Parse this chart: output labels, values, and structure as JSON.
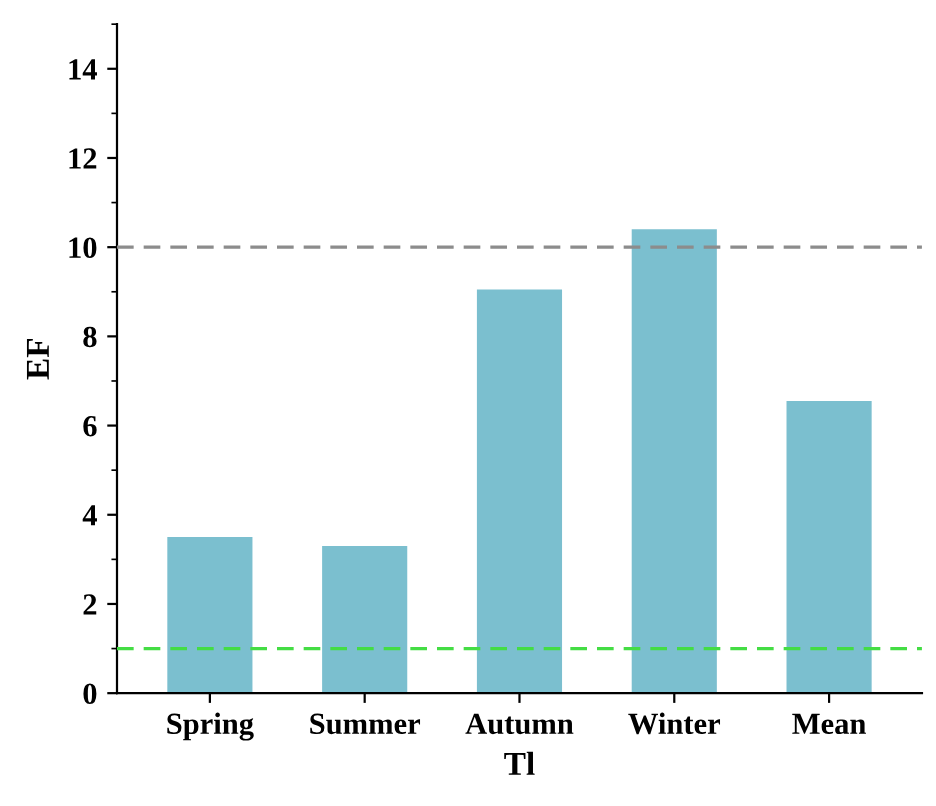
{
  "chart_data": {
    "type": "bar",
    "xlabel": "Tl",
    "ylabel": "EF",
    "categories": [
      "Spring",
      "Summer",
      "Autumn",
      "Winter",
      "Mean"
    ],
    "values": [
      3.5,
      3.3,
      9.05,
      10.4,
      6.55
    ],
    "color": "#7bbfcf",
    "ylim": [
      0,
      15
    ],
    "yticks": [
      0,
      2,
      4,
      6,
      8,
      10,
      12,
      14
    ],
    "grid": false,
    "ref_lines": [
      {
        "axis": "y",
        "value": 10,
        "label": null,
        "color": "#8c8c8c",
        "line_style": "dashed"
      },
      {
        "axis": "y",
        "value": 1,
        "label": null,
        "color": "#44dd44",
        "line_style": "dashed"
      }
    ]
  }
}
